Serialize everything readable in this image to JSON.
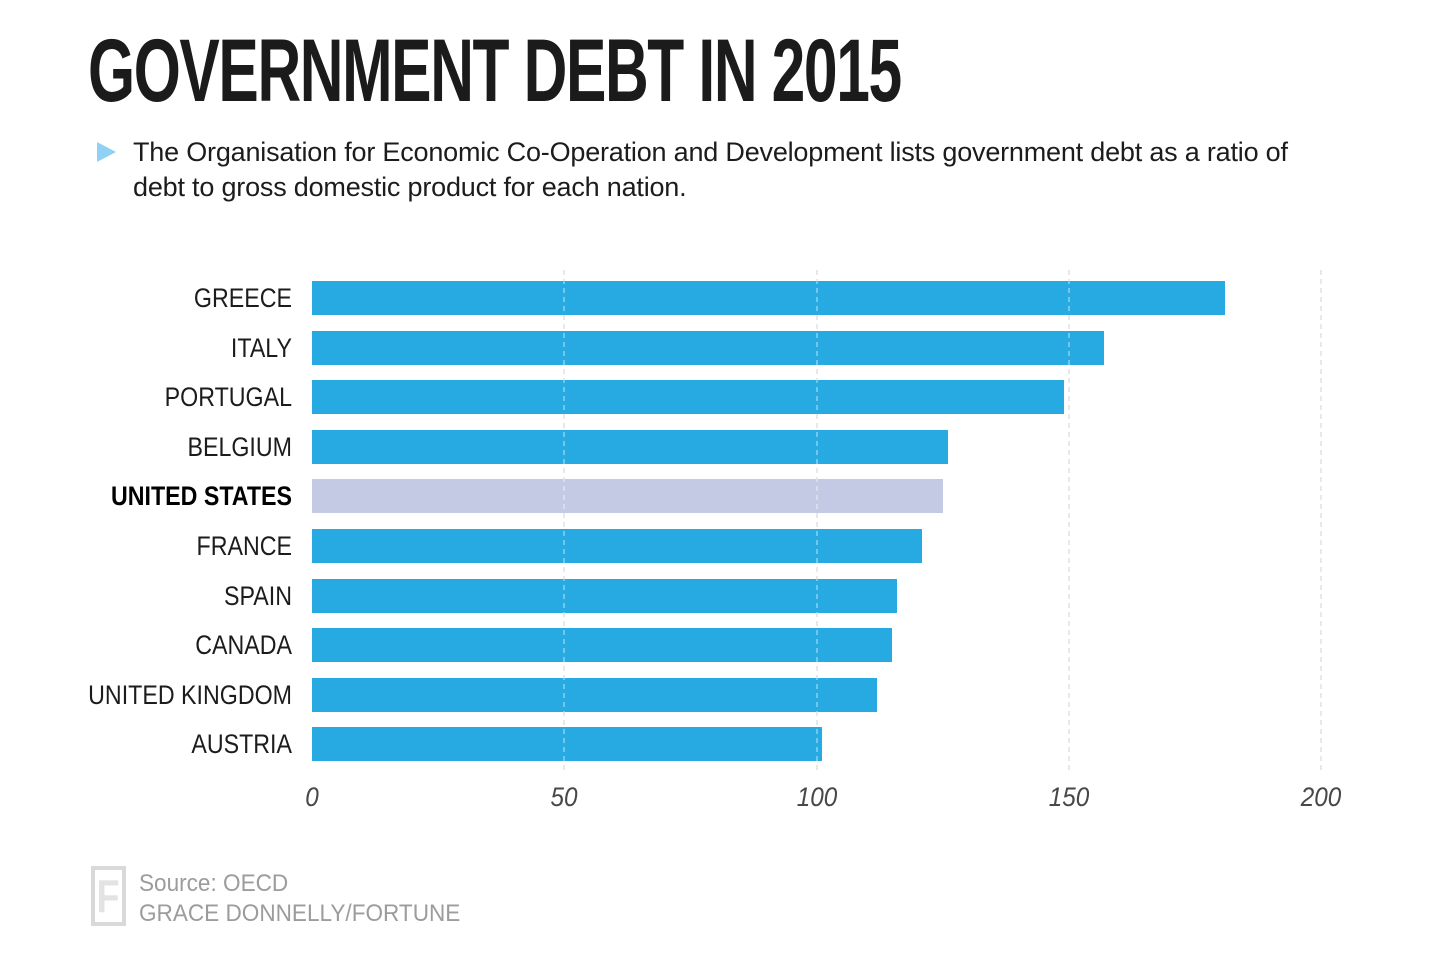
{
  "title": "GOVERNMENT DEBT IN 2015",
  "subtitle": "The Organisation for Economic Co-Operation and Development lists government debt as a ratio of debt to gross domestic product for each nation.",
  "bullet_icon": "right-pointing-triangle",
  "chart_data": {
    "type": "bar",
    "orientation": "horizontal",
    "title": "GOVERNMENT DEBT IN 2015",
    "xlabel": "",
    "ylabel": "",
    "categories": [
      "GREECE",
      "ITALY",
      "PORTUGAL",
      "BELGIUM",
      "UNITED STATES",
      "FRANCE",
      "SPAIN",
      "CANADA",
      "UNITED KINGDOM",
      "AUSTRIA"
    ],
    "values": [
      181,
      157,
      149,
      126,
      125,
      121,
      116,
      115,
      112,
      101
    ],
    "unit": "debt as % of GDP",
    "highlight_category": "UNITED STATES",
    "x_ticks": [
      0,
      50,
      100,
      150,
      200
    ],
    "xlim": [
      0,
      200
    ],
    "grid": "vertical-dashed",
    "legend": "none"
  },
  "colors": {
    "bar": "#27aae1",
    "highlight_bar": "#c4cae3",
    "gridline": "#dcdcdc",
    "bullet": "#8ed1f3",
    "title_text": "#1b1b1b",
    "tick_text": "#484848",
    "footer_text": "#9c9c9c"
  },
  "footer": {
    "logo_letter": "F",
    "source": "Source: OECD",
    "credit": "GRACE DONNELLY/FORTUNE"
  }
}
